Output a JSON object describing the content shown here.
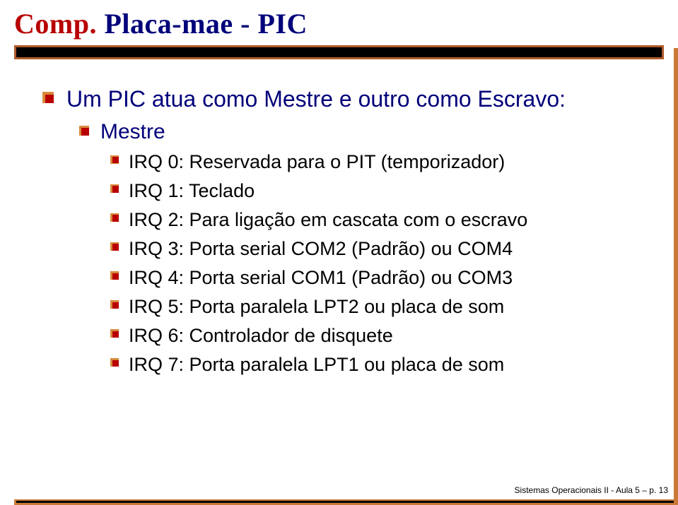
{
  "title": {
    "prefix": "Comp.",
    "main": " Placa-mae - PIC",
    "prefix_color": "#b80000",
    "main_color": "#00007a",
    "font_family": "Georgia, 'Times New Roman', serif",
    "font_size_pt": 30,
    "font_weight": "bold"
  },
  "bullet_style": {
    "main_color": "#b80000",
    "shadow_color": "#d88a3c"
  },
  "decoration": {
    "title_bar_shadow_color": "#b15b2b",
    "title_bar_main_color": "#000000",
    "right_bar_color": "#c97a38",
    "bottom_bar_shadow_color": "#c97a38",
    "bottom_bar_main_color": "#000000"
  },
  "body_colors": {
    "level1_text": "#00007a",
    "level2_text": "#00007a",
    "level3_text": "#000000",
    "background": "#ffffff"
  },
  "content": {
    "lvl1": [
      {
        "text": "Um PIC atua como Mestre e outro como Escravo:",
        "children": [
          {
            "text": "Mestre",
            "children": [
              {
                "text": "IRQ 0: Reservada para o PIT (temporizador)"
              },
              {
                "text": "IRQ 1: Teclado"
              },
              {
                "text": "IRQ 2: Para ligação em cascata com o escravo"
              },
              {
                "text": "IRQ 3: Porta serial COM2 (Padrão) ou COM4"
              },
              {
                "text": "IRQ 4: Porta serial COM1 (Padrão) ou COM3"
              },
              {
                "text": "IRQ 5: Porta paralela LPT2 ou placa de som"
              },
              {
                "text": "IRQ 6: Controlador de disquete"
              },
              {
                "text": "IRQ 7: Porta paralela LPT1 ou placa de som"
              }
            ]
          }
        ]
      }
    ]
  },
  "footer": {
    "text": "Sistemas Operacionais II - Aula 5 – p. 13",
    "font_size_pt": 9,
    "color": "#000000"
  }
}
